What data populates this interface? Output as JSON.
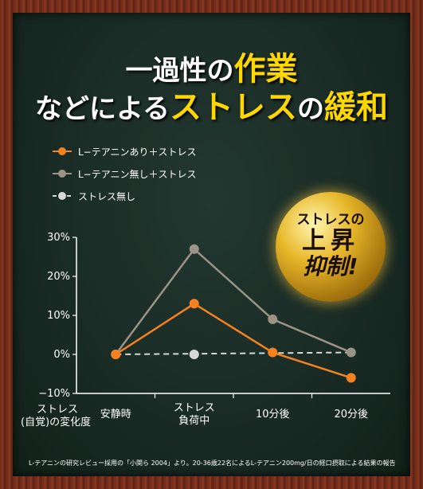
{
  "title": {
    "line1_pre": "一過性の",
    "line1_hl": "作業",
    "line2_pre": "などによる",
    "line2_hl": "ストレス",
    "line2_mid": "の",
    "line2_hl2": "緩和"
  },
  "badge": {
    "line1": "ストレスの",
    "line2": "上昇",
    "line3": "抑制!"
  },
  "y_label": [
    "ストレス",
    "(自覚)の変化度"
  ],
  "footnote": "L-テアニンの研究レビュー採用の「小関ら 2004」より。20-36歳22名によるL-テアニン200mg/日の経口摂取による結果の報告",
  "colors": {
    "accent": "#ffd700",
    "orange": "#f58220",
    "gray": "#9a9386",
    "light": "#d8d8d8"
  },
  "chart_data": {
    "type": "line",
    "categories": [
      "安静時",
      "ストレス負荷中",
      "10分後",
      "20分後"
    ],
    "category_lines": [
      [
        "安静時"
      ],
      [
        "ストレス",
        "負荷中"
      ],
      [
        "10分後"
      ],
      [
        "20分後"
      ]
    ],
    "yticks": [
      "30%",
      "20%",
      "10%",
      "0%",
      "−10%"
    ],
    "ylim": [
      -10,
      30
    ],
    "series": [
      {
        "name": "L−テアニンあり＋ストレス",
        "color": "#f58220",
        "dashed": false,
        "values": [
          0,
          13,
          0.5,
          -6
        ]
      },
      {
        "name": "L−テアニン無し＋ストレス",
        "color": "#9a9386",
        "dashed": false,
        "values": [
          0,
          27,
          9,
          0.5
        ]
      },
      {
        "name": "ストレス無し",
        "color": "#d8d8d8",
        "dashed": true,
        "values": [
          null,
          0,
          null,
          0.5
        ]
      }
    ],
    "baseline_dashed_from": [
      0,
      0
    ]
  }
}
